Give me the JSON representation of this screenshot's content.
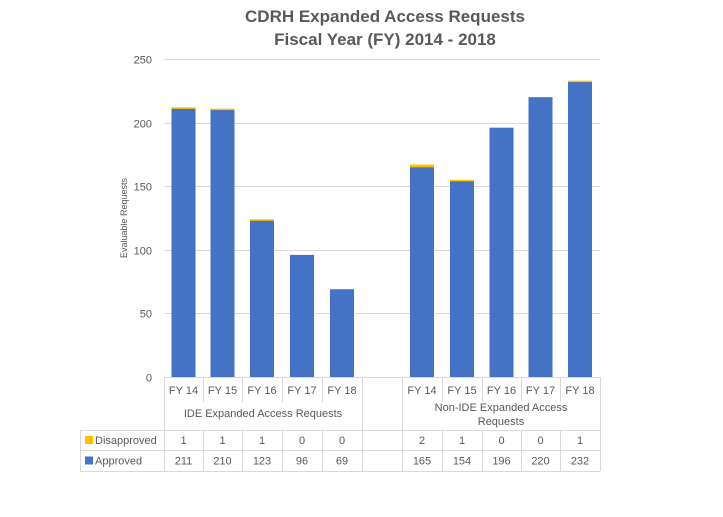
{
  "chart_data": {
    "type": "bar",
    "stacked": true,
    "title": [
      "CDRH Expanded Access Requests",
      "Fiscal Year (FY) 2014 - 2018"
    ],
    "ylabel": "Evaluable Requests",
    "xlabel": "",
    "ylim": [
      0,
      250
    ],
    "yticks": [
      0,
      50,
      100,
      150,
      200,
      250
    ],
    "grid": true,
    "legend_position": "bottom (data table)",
    "groups": [
      {
        "label": "IDE Expanded Access Requests",
        "categories": [
          "FY 14",
          "FY 15",
          "FY 16",
          "FY 17",
          "FY 18"
        ]
      },
      {
        "label": "Non-IDE Expanded Access Requests",
        "label_lines": [
          "Non-IDE Expanded Access",
          "Requests"
        ],
        "categories": [
          "FY 14",
          "FY 15",
          "FY 16",
          "FY 17",
          "FY 18"
        ]
      }
    ],
    "series": [
      {
        "name": "Approved",
        "color": "#4472c4",
        "values": [
          [
            211,
            210,
            123,
            96,
            69
          ],
          [
            165,
            154,
            196,
            220,
            232
          ]
        ]
      },
      {
        "name": "Disapproved",
        "color": "#ffc000",
        "values": [
          [
            1,
            1,
            1,
            0,
            0
          ],
          [
            2,
            1,
            0,
            0,
            1
          ]
        ]
      }
    ],
    "table_rows": [
      "Disapproved",
      "Approved"
    ]
  }
}
